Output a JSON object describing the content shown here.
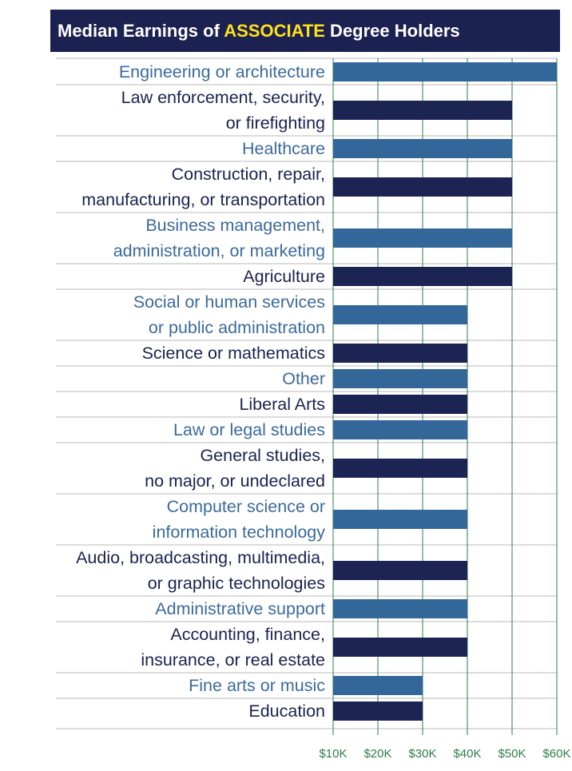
{
  "chart_data": {
    "type": "bar",
    "orientation": "horizontal",
    "title_parts": [
      "Median Earnings of ",
      "ASSOCIATE",
      " Degree Holders"
    ],
    "categories": [
      [
        "Engineering or architecture"
      ],
      [
        "Law enforcement, security,",
        "or firefighting"
      ],
      [
        "Healthcare"
      ],
      [
        "Construction, repair,",
        "manufacturing, or transportation"
      ],
      [
        "Business management,",
        "administration, or marketing"
      ],
      [
        "Agriculture"
      ],
      [
        "Social or human services",
        "or public administration"
      ],
      [
        "Science or mathematics"
      ],
      [
        "Other"
      ],
      [
        "Liberal Arts"
      ],
      [
        "Law or legal studies"
      ],
      [
        "General studies,",
        "no major, or undeclared"
      ],
      [
        "Computer science or",
        "information technology"
      ],
      [
        "Audio, broadcasting, multimedia,",
        "or graphic technologies"
      ],
      [
        "Administrative support"
      ],
      [
        "Accounting, finance,",
        "insurance, or real estate"
      ],
      [
        "Fine arts or music"
      ],
      [
        "Education"
      ]
    ],
    "values": [
      60000,
      50000,
      50000,
      50000,
      50000,
      50000,
      40000,
      40000,
      40000,
      40000,
      40000,
      40000,
      40000,
      40000,
      40000,
      40000,
      30000,
      30000
    ],
    "xlim": [
      10000,
      60000
    ],
    "xticks": [
      "$10K",
      "$20K",
      "$30K",
      "$40K",
      "$50K",
      "$60K"
    ],
    "grid": "vertical",
    "colors": {
      "bar_light": "#336699",
      "bar_dark": "#1b2453",
      "label_light": "#3b6a9d",
      "label_dark": "#1b2150",
      "grid": "#2e7d4a",
      "separator": "#c8c8c8",
      "title_bg": "#1b2150",
      "title_text": "#ffffff",
      "title_highlight": "#ffe11a"
    }
  }
}
